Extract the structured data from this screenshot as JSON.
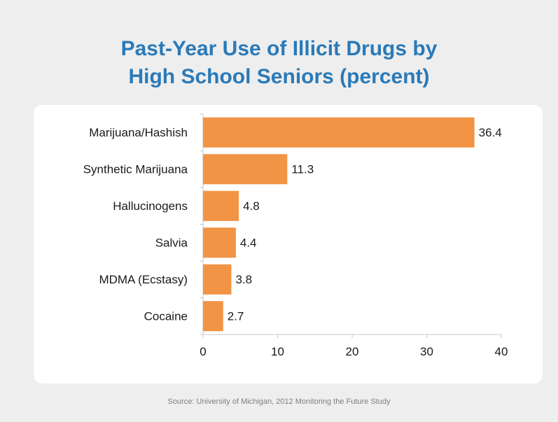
{
  "title_lines": [
    "Past-Year Use of Illicit Drugs by",
    "High School Seniors (percent)"
  ],
  "source": "Source: University of Michigan, 2012 Monitoring the Future Study",
  "colors": {
    "bar": "#f29445",
    "title": "#2a7ab8",
    "axis": "#c8c8c8"
  },
  "chart_data": {
    "type": "bar",
    "orientation": "horizontal",
    "title": "Past-Year Use of Illicit Drugs by High School Seniors (percent)",
    "categories": [
      "Marijuana/Hashish",
      "Synthetic Marijuana",
      "Hallucinogens",
      "Salvia",
      "MDMA (Ecstasy)",
      "Cocaine"
    ],
    "values": [
      36.4,
      11.3,
      4.8,
      4.4,
      3.8,
      2.7
    ],
    "value_labels": [
      "36.4",
      "11.3",
      "4.8",
      "4.4",
      "3.8",
      "2.7"
    ],
    "xlim": [
      0,
      40
    ],
    "xticks": [
      0,
      10,
      20,
      30,
      40
    ],
    "xtick_labels": [
      "0",
      "10",
      "20",
      "30",
      "40"
    ],
    "xlabel": "",
    "ylabel": "",
    "grid": false,
    "legend": "none"
  }
}
